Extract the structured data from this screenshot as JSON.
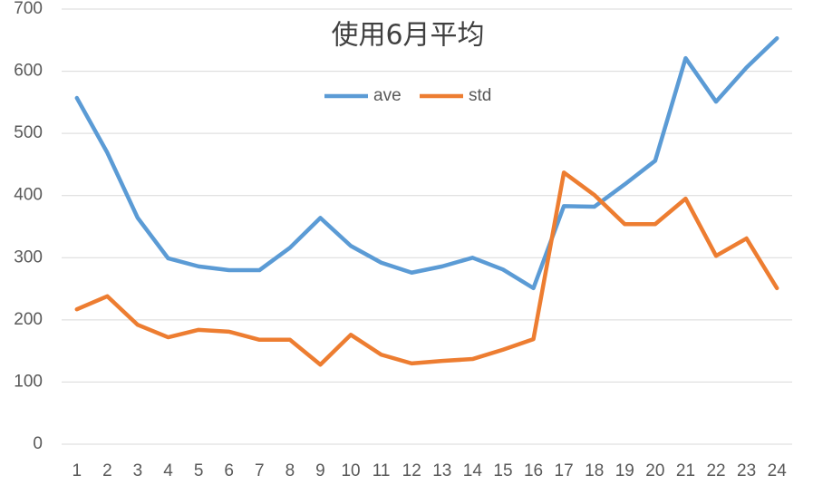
{
  "chart_data": {
    "type": "line",
    "title": "使用6月平均",
    "categories": [
      "1",
      "2",
      "3",
      "4",
      "5",
      "6",
      "7",
      "8",
      "9",
      "10",
      "11",
      "12",
      "13",
      "14",
      "15",
      "16",
      "17",
      "18",
      "19",
      "20",
      "21",
      "22",
      "23",
      "24"
    ],
    "series": [
      {
        "name": "ave",
        "color": "#5b9bd5",
        "values": [
          557,
          469,
          364,
          299,
          286,
          280,
          280,
          316,
          364,
          319,
          292,
          276,
          286,
          300,
          281,
          251,
          383,
          382,
          418,
          456,
          621,
          551,
          606,
          653
        ]
      },
      {
        "name": "std",
        "color": "#ed7d31",
        "values": [
          217,
          238,
          192,
          172,
          184,
          181,
          168,
          168,
          128,
          176,
          144,
          130,
          134,
          137,
          152,
          169,
          437,
          401,
          354,
          354,
          395,
          303,
          331,
          251
        ]
      }
    ],
    "ylim": [
      0,
      700
    ],
    "yticks": [
      0,
      100,
      200,
      300,
      400,
      500,
      600,
      700
    ],
    "grid": true,
    "legend": "top"
  }
}
